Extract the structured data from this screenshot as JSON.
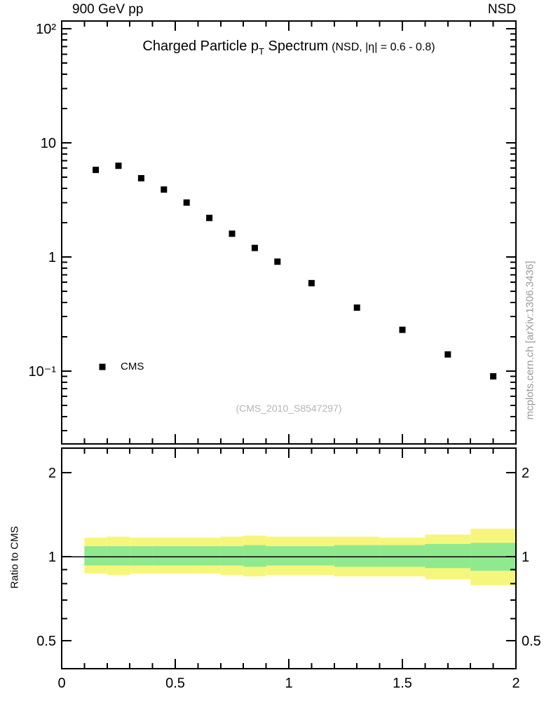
{
  "labels": {
    "top_left": "900 GeV pp",
    "top_right": "NSD",
    "title_main": "Charged Particle p",
    "title_sub": "T",
    "title_after": " Spectrum",
    "title_paren": "(NSD, |η| = 0.6 - 0.8)",
    "legend_cms": "CMS",
    "analysis_ref": "(CMS_2010_S8547297)",
    "side_watermark": "mcplots.cern.ch [arXiv:1306.3436]",
    "ratio_ylabel": "Ratio to CMS"
  },
  "chart_data": {
    "type": "scatter",
    "title": "Charged Particle pT Spectrum (NSD, |η| = 0.6 - 0.8)",
    "top_left_label": "900 GeV pp",
    "top_right_label": "NSD",
    "xlim": [
      0,
      2
    ],
    "x_major_ticks": [
      0,
      0.5,
      1,
      1.5,
      2
    ],
    "x_tick_labels": [
      "0",
      "0.5",
      "1",
      "1.5",
      "2"
    ],
    "x_minor_step": 0.1,
    "top_panel": {
      "yscale": "log",
      "ylim": [
        0.023,
        117
      ],
      "grid": false,
      "y_tick_labels": [
        {
          "value": 100,
          "label": "10²"
        },
        {
          "value": 10,
          "label": "10"
        },
        {
          "value": 1,
          "label": "1"
        },
        {
          "value": 0.1,
          "label": "10⁻¹"
        }
      ],
      "legend": {
        "entries": [
          {
            "label": "CMS",
            "marker": "filled-square",
            "color": "#000000"
          }
        ],
        "position": "lower-left"
      },
      "annotation": "(CMS_2010_S8547297)",
      "series": [
        {
          "name": "CMS",
          "marker": "filled-square",
          "color": "#000000",
          "x": [
            0.15,
            0.25,
            0.35,
            0.45,
            0.55,
            0.65,
            0.75,
            0.85,
            0.95,
            1.1,
            1.3,
            1.5,
            1.7,
            1.9
          ],
          "y": [
            5.8,
            6.3,
            4.9,
            3.9,
            3.0,
            2.2,
            1.6,
            1.2,
            0.91,
            0.59,
            0.36,
            0.23,
            0.14,
            0.09
          ]
        }
      ]
    },
    "ratio_panel": {
      "ylabel": "Ratio to CMS",
      "yscale": "log",
      "ylim": [
        0.397,
        2.448
      ],
      "y_major_ticks": [
        0.5,
        1,
        2
      ],
      "y_tick_labels": [
        "0.5",
        "1",
        "2"
      ],
      "y_minor_ticks": [
        0.6,
        0.7,
        0.8,
        0.9
      ],
      "reference_line": 1.0,
      "bin_edges": [
        0.1,
        0.2,
        0.3,
        0.4,
        0.5,
        0.6,
        0.7,
        0.8,
        0.9,
        1.0,
        1.2,
        1.4,
        1.6,
        1.8,
        2.0
      ],
      "yellow_band": {
        "color": "#f7f67c",
        "lo": [
          0.87,
          0.86,
          0.87,
          0.87,
          0.87,
          0.87,
          0.86,
          0.85,
          0.86,
          0.86,
          0.85,
          0.85,
          0.83,
          0.79
        ],
        "hi": [
          1.17,
          1.18,
          1.17,
          1.17,
          1.17,
          1.17,
          1.18,
          1.19,
          1.18,
          1.18,
          1.18,
          1.17,
          1.2,
          1.26
        ]
      },
      "green_band": {
        "color": "#8fe98f",
        "lo": [
          0.93,
          0.93,
          0.93,
          0.93,
          0.93,
          0.93,
          0.93,
          0.92,
          0.93,
          0.93,
          0.92,
          0.92,
          0.91,
          0.89
        ],
        "hi": [
          1.09,
          1.09,
          1.09,
          1.09,
          1.09,
          1.09,
          1.09,
          1.1,
          1.09,
          1.09,
          1.1,
          1.1,
          1.11,
          1.12
        ]
      }
    }
  }
}
